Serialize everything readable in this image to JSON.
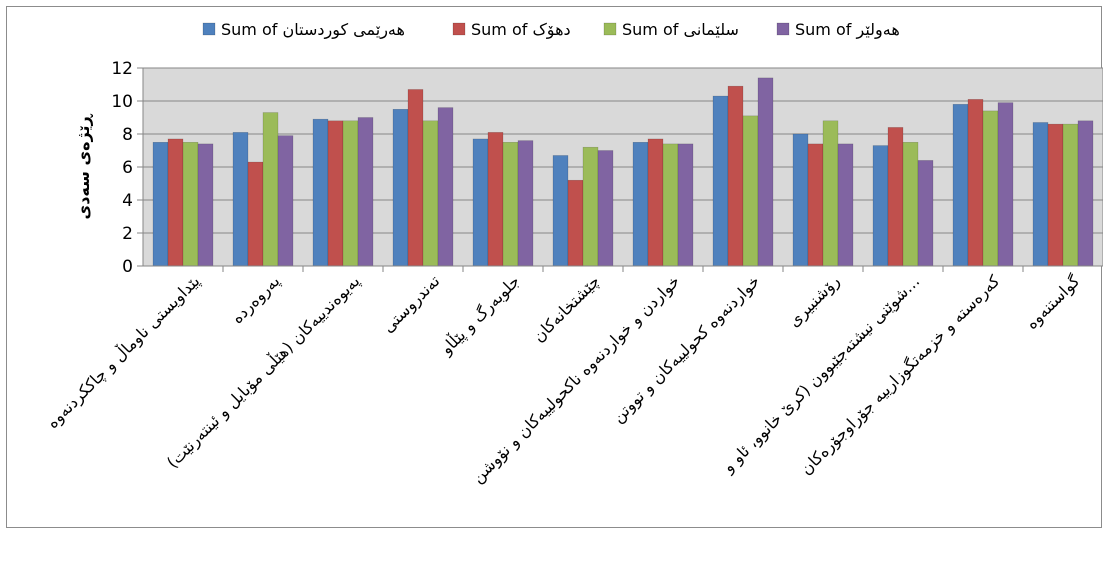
{
  "chart_data": {
    "type": "bar",
    "ylabel": "ڕێژەی سەدی",
    "ylim": [
      0,
      12
    ],
    "yticks": [
      0,
      2,
      4,
      6,
      8,
      10,
      12
    ],
    "grid": true,
    "legend_position": "top",
    "categories": [
      "پێداویستی ناوماڵ و چاککردنەوە",
      "پەروەردە",
      "پەیوەندییەکان (هێڵی مۆبایل و ئینتەرنێت)",
      "تەندروستی",
      "جلوبەرگ و پێڵاو",
      "چێشتخانەکان",
      "خواردن و خواردنەوە ناکحولییەکان و نۆوشن",
      "خواردنەوە کحولییەکان و تووتن",
      "رۆشنبیری",
      "شوێنی نیشتەجێبوون (کرێ خانوو، ئاو و…",
      "کەرەستە و خزمەتگوزارییە جۆراوجۆرەکان",
      "گواستنەوە"
    ],
    "series": [
      {
        "name": "Sum of هەرێمی کوردستان",
        "color": "#4f81bd",
        "values": [
          7.5,
          8.1,
          8.9,
          9.5,
          7.7,
          6.7,
          7.5,
          10.3,
          8.0,
          7.3,
          9.8,
          8.7
        ]
      },
      {
        "name": "Sum of دهۆک",
        "color": "#c0504d",
        "values": [
          7.7,
          6.3,
          8.8,
          10.7,
          8.1,
          5.2,
          7.7,
          10.9,
          7.4,
          8.4,
          10.1,
          8.6
        ]
      },
      {
        "name": "Sum of سلێمانی",
        "color": "#9bbb59",
        "values": [
          7.5,
          9.3,
          8.8,
          8.8,
          7.5,
          7.2,
          7.4,
          9.1,
          8.8,
          7.5,
          9.4,
          8.6
        ]
      },
      {
        "name": "Sum of هەولێر",
        "color": "#8064a2",
        "values": [
          7.4,
          7.9,
          9.0,
          9.6,
          7.6,
          7.0,
          7.4,
          11.4,
          7.4,
          6.4,
          9.9,
          8.8
        ]
      }
    ]
  }
}
